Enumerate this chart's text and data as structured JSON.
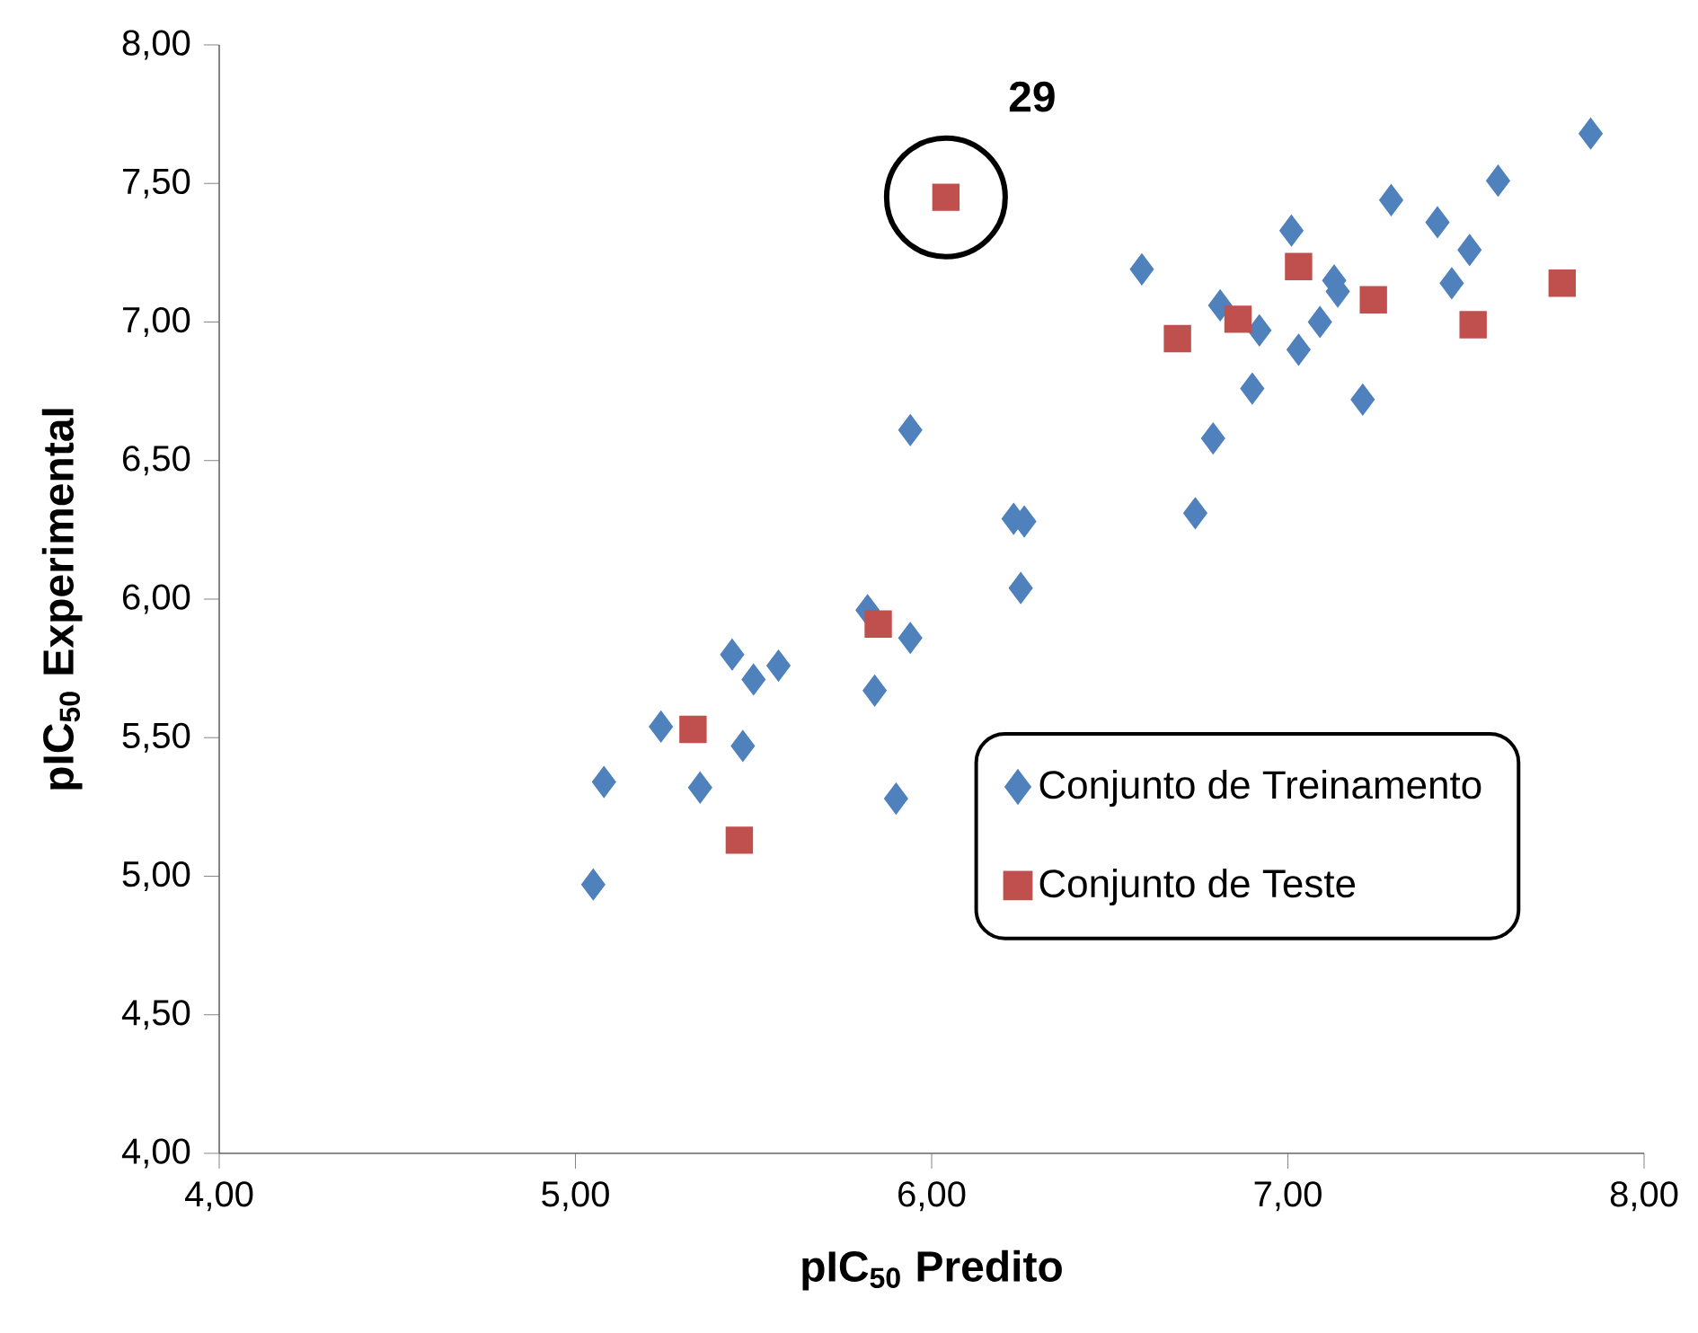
{
  "chart_data": {
    "type": "scatter",
    "xlabel": "pIC$_{50}$ Predito",
    "ylabel": "pIC$_{50}$ Experimental",
    "xlim": [
      4,
      8
    ],
    "ylim": [
      4,
      8
    ],
    "xticks": [
      {
        "value": 4,
        "label": "4,00"
      },
      {
        "value": 5,
        "label": "5,00"
      },
      {
        "value": 6,
        "label": "6,00"
      },
      {
        "value": 7,
        "label": "7,00"
      },
      {
        "value": 8,
        "label": "8,00"
      }
    ],
    "yticks": [
      {
        "value": 4,
        "label": "4,00"
      },
      {
        "value": 4.5,
        "label": "4,50"
      },
      {
        "value": 5,
        "label": "5,00"
      },
      {
        "value": 5.5,
        "label": "5,50"
      },
      {
        "value": 6,
        "label": "6,00"
      },
      {
        "value": 6.5,
        "label": "6,50"
      },
      {
        "value": 7,
        "label": "7,00"
      },
      {
        "value": 7.5,
        "label": "7,50"
      },
      {
        "value": 8,
        "label": "8,00"
      }
    ],
    "grid": false,
    "legend": "right",
    "series": [
      {
        "name": "Conjunto de Treinamento",
        "color": "#4f81bd",
        "marker": "diamond",
        "x": [
          5.05,
          5.08,
          5.24,
          5.35,
          5.44,
          5.47,
          5.5,
          5.57,
          5.82,
          5.84,
          5.94,
          5.9,
          5.94,
          6.23,
          6.26,
          6.25,
          6.59,
          6.74,
          6.79,
          6.81,
          6.9,
          6.92,
          7.01,
          7.03,
          7.09,
          7.13,
          7.14,
          7.21,
          7.29,
          7.42,
          7.46,
          7.51,
          7.59,
          7.85
        ],
        "values": [
          4.97,
          5.34,
          5.54,
          5.32,
          5.8,
          5.47,
          5.71,
          5.76,
          5.96,
          5.67,
          5.86,
          5.28,
          6.61,
          6.29,
          6.28,
          6.04,
          7.19,
          6.31,
          6.58,
          7.06,
          6.76,
          6.97,
          7.33,
          6.9,
          7.0,
          7.15,
          7.11,
          6.72,
          7.44,
          7.36,
          7.14,
          7.26,
          7.51,
          7.68
        ]
      },
      {
        "name": "Conjunto de Teste",
        "color": "#c0504d",
        "marker": "square",
        "x": [
          5.33,
          5.46,
          5.85,
          6.04,
          6.69,
          6.86,
          7.03,
          7.24,
          7.52,
          7.77
        ],
        "values": [
          5.53,
          5.13,
          5.91,
          7.45,
          6.94,
          7.01,
          7.2,
          7.08,
          6.99,
          7.14
        ]
      }
    ],
    "annotations": [
      {
        "text": "29",
        "x": 6.04,
        "y": 7.45
      }
    ]
  }
}
